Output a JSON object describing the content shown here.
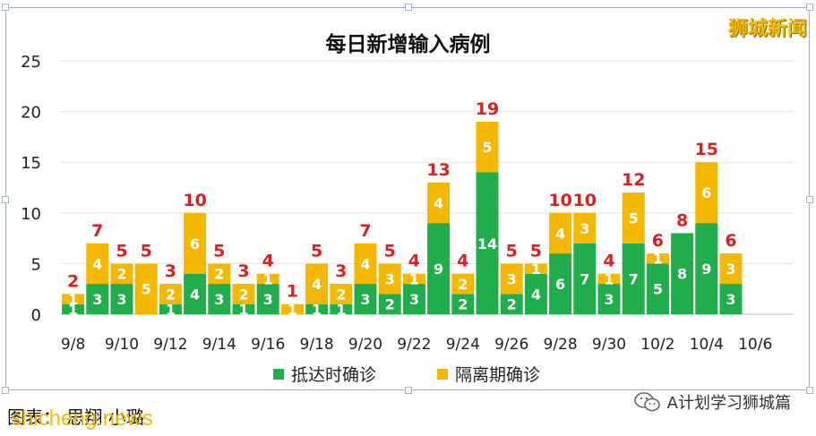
{
  "brand": "狮城新闻",
  "caption": {
    "left_text": "图表： 思翔·小璐",
    "left_watermark": "shicheng.news",
    "right_text": "A计划学习狮城篇",
    "right_icon": "wechat-icon"
  },
  "colors": {
    "arrival": "#1fae4b",
    "quarantine": "#f5b800",
    "total_label": "#e01e1e",
    "grid": "#e3e3e3"
  },
  "chart_data": {
    "type": "bar",
    "stacked": true,
    "title": "每日新增输入病例",
    "categories": [
      "9/8",
      "9/9",
      "9/10",
      "9/11",
      "9/12",
      "9/13",
      "9/14",
      "9/15",
      "9/16",
      "9/17",
      "9/18",
      "9/19",
      "9/20",
      "9/21",
      "9/22",
      "9/23",
      "9/24",
      "9/25",
      "9/26",
      "9/27",
      "9/28",
      "9/29",
      "9/30",
      "10/1",
      "10/2",
      "10/3",
      "10/4",
      "10/5"
    ],
    "tick_labels": [
      "9/8",
      "9/10",
      "9/12",
      "9/14",
      "9/16",
      "9/18",
      "9/20",
      "9/22",
      "9/24",
      "9/26",
      "9/28",
      "9/30",
      "10/2",
      "10/4",
      "10/6"
    ],
    "series": [
      {
        "name": "抵达时确诊",
        "values": [
          1,
          3,
          3,
          0,
          1,
          4,
          3,
          1,
          3,
          0,
          1,
          1,
          3,
          2,
          3,
          9,
          2,
          14,
          2,
          4,
          6,
          7,
          3,
          7,
          5,
          8,
          9,
          3
        ]
      },
      {
        "name": "隔离期确诊",
        "values": [
          1,
          4,
          2,
          5,
          2,
          6,
          2,
          2,
          1,
          1,
          4,
          2,
          4,
          3,
          1,
          4,
          2,
          5,
          3,
          1,
          4,
          3,
          1,
          5,
          1,
          0,
          6,
          3
        ]
      }
    ],
    "totals": [
      2,
      7,
      5,
      5,
      3,
      10,
      5,
      3,
      4,
      1,
      5,
      3,
      7,
      5,
      4,
      13,
      4,
      19,
      5,
      5,
      10,
      10,
      4,
      12,
      6,
      8,
      15,
      6
    ],
    "ylim": [
      0,
      25
    ],
    "yticks": [
      0,
      5,
      10,
      15,
      20,
      25
    ],
    "grid": true,
    "legend_position": "bottom"
  }
}
